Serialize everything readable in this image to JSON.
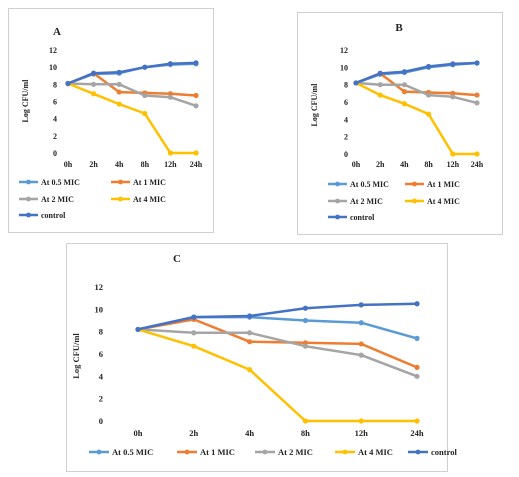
{
  "chart_data": [
    {
      "type": "line",
      "title": "A",
      "ylabel": "Log CFU/ml",
      "xlabel": "",
      "ylim": [
        0,
        12
      ],
      "yticks": [
        0,
        2,
        4,
        6,
        8,
        10,
        12
      ],
      "grid": false,
      "legend": "bottom",
      "categories": [
        "0h",
        "2h",
        "4h",
        "8h",
        "12h",
        "24h"
      ],
      "series": [
        {
          "name": "At 0.5 MIC",
          "color": "#5b9bd5",
          "values": [
            8.1,
            9.2,
            9.3,
            10.0,
            10.3,
            10.4
          ]
        },
        {
          "name": "At 1 MIC",
          "color": "#ed7d31",
          "values": [
            8.1,
            9.3,
            7.1,
            7.0,
            6.9,
            6.7
          ]
        },
        {
          "name": "At 2 MIC",
          "color": "#a5a5a5",
          "values": [
            8.1,
            8.0,
            8.0,
            6.7,
            6.5,
            5.5
          ]
        },
        {
          "name": "At 4 MIC",
          "color": "#ffc000",
          "values": [
            8.1,
            6.9,
            5.7,
            4.6,
            0,
            0
          ]
        },
        {
          "name": "control",
          "color": "#4472c4",
          "values": [
            8.1,
            9.3,
            9.4,
            10.0,
            10.4,
            10.5
          ]
        }
      ]
    },
    {
      "type": "line",
      "title": "B",
      "ylabel": "Log CFU/ml",
      "xlabel": "",
      "ylim": [
        0,
        12
      ],
      "yticks": [
        0,
        2,
        4,
        6,
        8,
        10,
        12
      ],
      "grid": false,
      "legend": "bottom",
      "categories": [
        "0h",
        "2h",
        "4h",
        "8h",
        "12h",
        "24h"
      ],
      "series": [
        {
          "name": "At 0.5 MIC",
          "color": "#5b9bd5",
          "values": [
            8.2,
            9.2,
            9.4,
            10.0,
            10.3,
            10.5
          ]
        },
        {
          "name": "At 1 MIC",
          "color": "#ed7d31",
          "values": [
            8.2,
            9.3,
            7.2,
            7.1,
            7.0,
            6.8
          ]
        },
        {
          "name": "At 2 MIC",
          "color": "#a5a5a5",
          "values": [
            8.2,
            8.0,
            8.0,
            6.8,
            6.6,
            5.9
          ]
        },
        {
          "name": "At 4 MIC",
          "color": "#ffc000",
          "values": [
            8.2,
            6.8,
            5.8,
            4.6,
            0,
            0
          ]
        },
        {
          "name": "control",
          "color": "#4472c4",
          "values": [
            8.2,
            9.3,
            9.5,
            10.1,
            10.4,
            10.5
          ]
        }
      ]
    },
    {
      "type": "line",
      "title": "C",
      "ylabel": "Log CFU/ml",
      "xlabel": "",
      "ylim": [
        0,
        12
      ],
      "yticks": [
        0,
        2,
        4,
        6,
        8,
        10,
        12
      ],
      "grid": false,
      "legend": "bottom",
      "categories": [
        "0h",
        "2h",
        "4h",
        "8h",
        "12h",
        "24h"
      ],
      "series": [
        {
          "name": "At 0.5 MIC",
          "color": "#5b9bd5",
          "values": [
            8.2,
            9.3,
            9.3,
            9.0,
            8.8,
            7.4
          ]
        },
        {
          "name": "At 1 MIC",
          "color": "#ed7d31",
          "values": [
            8.2,
            9.1,
            7.1,
            7.0,
            6.9,
            4.8
          ]
        },
        {
          "name": "At 2 MIC",
          "color": "#a5a5a5",
          "values": [
            8.2,
            7.9,
            7.9,
            6.7,
            5.9,
            4.0
          ]
        },
        {
          "name": "At 4 MIC",
          "color": "#ffc000",
          "values": [
            8.2,
            6.7,
            4.6,
            0,
            0,
            0
          ]
        },
        {
          "name": "control",
          "color": "#4472c4",
          "values": [
            8.2,
            9.3,
            9.4,
            10.1,
            10.4,
            10.5
          ]
        }
      ]
    }
  ]
}
